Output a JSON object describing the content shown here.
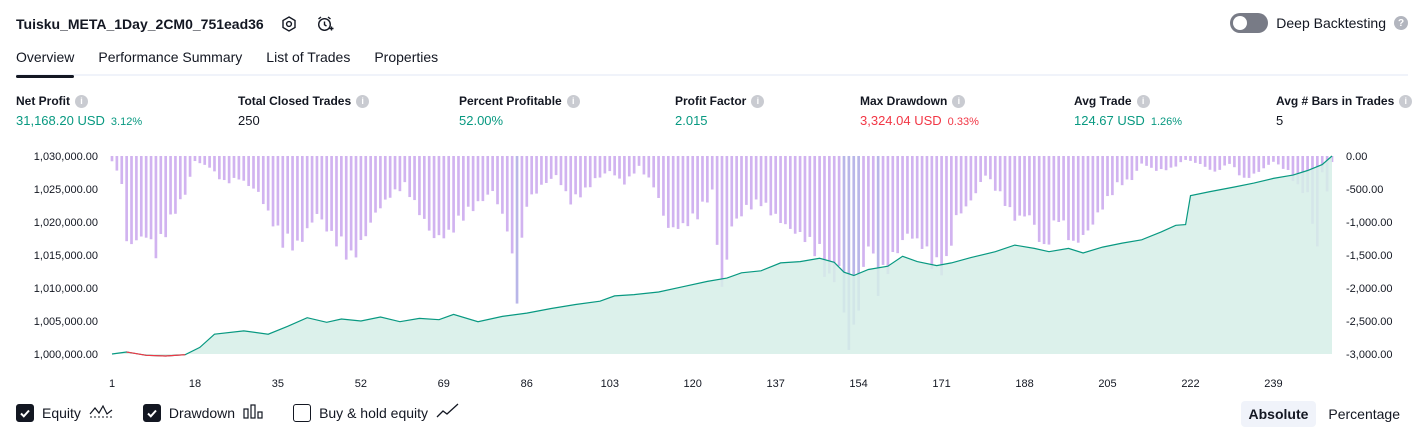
{
  "header": {
    "strategy_title": "Tuisku_META_1Day_2CM0_751ead36",
    "deep_backtesting_label": "Deep Backtesting",
    "deep_backtesting_enabled": false
  },
  "tabs": [
    {
      "label": "Overview",
      "active": true
    },
    {
      "label": "Performance Summary",
      "active": false
    },
    {
      "label": "List of Trades",
      "active": false
    },
    {
      "label": "Properties",
      "active": false
    }
  ],
  "metrics": [
    {
      "label": "Net Profit",
      "value": "31,168.20 USD",
      "pct": "3.12%",
      "color": "#089981"
    },
    {
      "label": "Total Closed Trades",
      "value": "250",
      "pct": "",
      "color": "#131722"
    },
    {
      "label": "Percent Profitable",
      "value": "52.00%",
      "pct": "",
      "color": "#089981"
    },
    {
      "label": "Profit Factor",
      "value": "2.015",
      "pct": "",
      "color": "#089981"
    },
    {
      "label": "Max Drawdown",
      "value": "3,324.04 USD",
      "pct": "0.33%",
      "color": "#f23645"
    },
    {
      "label": "Avg Trade",
      "value": "124.67 USD",
      "pct": "1.26%",
      "color": "#089981"
    },
    {
      "label": "Avg # Bars in Trades",
      "value": "5",
      "pct": "",
      "color": "#131722"
    }
  ],
  "chart_data": {
    "type": "area",
    "left_axis": {
      "ticks": [
        "1,030,000.00",
        "1,025,000.00",
        "1,020,000.00",
        "1,015,000.00",
        "1,010,000.00",
        "1,005,000.00",
        "1,000,000.00"
      ],
      "range": [
        1000000,
        1030000
      ]
    },
    "right_axis": {
      "ticks": [
        "0.00",
        "-500.00",
        "-1,000.00",
        "-1,500.00",
        "-2,000.00",
        "-2,500.00",
        "-3,000.00"
      ],
      "range": [
        -3000,
        0
      ]
    },
    "x_ticks": [
      "1",
      "18",
      "35",
      "52",
      "69",
      "86",
      "103",
      "120",
      "137",
      "154",
      "171",
      "188",
      "205",
      "222",
      "239"
    ],
    "x_range": [
      1,
      251
    ],
    "colors": {
      "equity": "#089981",
      "equity_fill": "#d6efe8",
      "equity_negative": "#f23645",
      "drawdown": "#d1b3f0",
      "drawdown_deep": "#b9b6e8"
    },
    "equity": [
      [
        1,
        1000000
      ],
      [
        4,
        1000300
      ],
      [
        8,
        999800
      ],
      [
        12,
        999700
      ],
      [
        16,
        999900
      ],
      [
        19,
        1001000
      ],
      [
        22,
        1003000
      ],
      [
        28,
        1003500
      ],
      [
        33,
        1003000
      ],
      [
        37,
        1004200
      ],
      [
        41,
        1005500
      ],
      [
        45,
        1004800
      ],
      [
        48,
        1005300
      ],
      [
        52,
        1005000
      ],
      [
        56,
        1005600
      ],
      [
        60,
        1004900
      ],
      [
        64,
        1005400
      ],
      [
        68,
        1005200
      ],
      [
        71,
        1006000
      ],
      [
        76,
        1004900
      ],
      [
        81,
        1005700
      ],
      [
        86,
        1006200
      ],
      [
        91,
        1006900
      ],
      [
        96,
        1007500
      ],
      [
        101,
        1008000
      ],
      [
        104,
        1008800
      ],
      [
        108,
        1009000
      ],
      [
        113,
        1009400
      ],
      [
        118,
        1010200
      ],
      [
        123,
        1011000
      ],
      [
        127,
        1011500
      ],
      [
        130,
        1012300
      ],
      [
        134,
        1012600
      ],
      [
        138,
        1013800
      ],
      [
        142,
        1014000
      ],
      [
        146,
        1014500
      ],
      [
        149,
        1013900
      ],
      [
        151,
        1012400
      ],
      [
        153,
        1011900
      ],
      [
        156,
        1012800
      ],
      [
        160,
        1013300
      ],
      [
        163,
        1014800
      ],
      [
        166,
        1014000
      ],
      [
        170,
        1013400
      ],
      [
        173,
        1013800
      ],
      [
        177,
        1014600
      ],
      [
        182,
        1015500
      ],
      [
        186,
        1016500
      ],
      [
        190,
        1016000
      ],
      [
        193,
        1015500
      ],
      [
        197,
        1016000
      ],
      [
        200,
        1015300
      ],
      [
        204,
        1016200
      ],
      [
        208,
        1016800
      ],
      [
        212,
        1017300
      ],
      [
        216,
        1018500
      ],
      [
        219,
        1019500
      ],
      [
        221,
        1019600
      ],
      [
        222,
        1024000
      ],
      [
        226,
        1024600
      ],
      [
        231,
        1025300
      ],
      [
        235,
        1025900
      ],
      [
        239,
        1026600
      ],
      [
        243,
        1027100
      ],
      [
        246,
        1027800
      ],
      [
        249,
        1028700
      ],
      [
        251,
        1030000
      ]
    ],
    "equity_negative_range": [
      4,
      18
    ],
    "drawdown_keyframes": [
      [
        1,
        -80
      ],
      [
        3,
        -430
      ],
      [
        4,
        -1420
      ],
      [
        6,
        -1350
      ],
      [
        8,
        -1270
      ],
      [
        10,
        -1560
      ],
      [
        12,
        -1230
      ],
      [
        14,
        -880
      ],
      [
        16,
        -600
      ],
      [
        18,
        -80
      ],
      [
        21,
        -180
      ],
      [
        24,
        -440
      ],
      [
        27,
        -360
      ],
      [
        31,
        -580
      ],
      [
        33,
        -920
      ],
      [
        36,
        -1390
      ],
      [
        39,
        -1460
      ],
      [
        43,
        -920
      ],
      [
        46,
        -1290
      ],
      [
        48,
        -1460
      ],
      [
        50,
        -1680
      ],
      [
        52,
        -1420
      ],
      [
        55,
        -910
      ],
      [
        58,
        -640
      ],
      [
        61,
        -480
      ],
      [
        64,
        -910
      ],
      [
        67,
        -1310
      ],
      [
        70,
        -1260
      ],
      [
        73,
        -980
      ],
      [
        76,
        -770
      ],
      [
        79,
        -560
      ],
      [
        82,
        -1160
      ],
      [
        84,
        -2240
      ],
      [
        86,
        -770
      ],
      [
        89,
        -480
      ],
      [
        92,
        -310
      ],
      [
        95,
        -740
      ],
      [
        98,
        -570
      ],
      [
        100,
        -380
      ],
      [
        103,
        -240
      ],
      [
        106,
        -440
      ],
      [
        109,
        -180
      ],
      [
        112,
        -480
      ],
      [
        115,
        -1160
      ],
      [
        118,
        -1130
      ],
      [
        121,
        -960
      ],
      [
        124,
        -580
      ],
      [
        126,
        -2160
      ],
      [
        128,
        -1120
      ],
      [
        131,
        -840
      ],
      [
        134,
        -760
      ],
      [
        137,
        -980
      ],
      [
        140,
        -1170
      ],
      [
        143,
        -1320
      ],
      [
        146,
        -1620
      ],
      [
        148,
        -2050
      ],
      [
        150,
        -1830
      ],
      [
        152,
        -3100
      ],
      [
        154,
        -2400
      ],
      [
        156,
        -1380
      ],
      [
        158,
        -2120
      ],
      [
        161,
        -1640
      ],
      [
        164,
        -1240
      ],
      [
        167,
        -1430
      ],
      [
        170,
        -1860
      ],
      [
        172,
        -1760
      ],
      [
        174,
        -990
      ],
      [
        177,
        -720
      ],
      [
        180,
        -300
      ],
      [
        183,
        -640
      ],
      [
        186,
        -1000
      ],
      [
        189,
        -940
      ],
      [
        192,
        -1520
      ],
      [
        195,
        -1000
      ],
      [
        198,
        -1430
      ],
      [
        201,
        -1200
      ],
      [
        204,
        -820
      ],
      [
        207,
        -480
      ],
      [
        210,
        -370
      ],
      [
        212,
        -120
      ],
      [
        215,
        -230
      ],
      [
        218,
        -210
      ],
      [
        221,
        -60
      ],
      [
        224,
        -130
      ],
      [
        227,
        -260
      ],
      [
        230,
        -120
      ],
      [
        233,
        -380
      ],
      [
        236,
        -250
      ],
      [
        239,
        -90
      ],
      [
        242,
        -250
      ],
      [
        244,
        -510
      ],
      [
        246,
        -620
      ],
      [
        248,
        -1480
      ],
      [
        249,
        -260
      ],
      [
        250,
        -560
      ],
      [
        251,
        -100
      ]
    ]
  },
  "legend": {
    "items": [
      {
        "label": "Equity",
        "checked": true,
        "icon": "equity-icon"
      },
      {
        "label": "Drawdown",
        "checked": true,
        "icon": "drawdown-icon"
      },
      {
        "label": "Buy & hold equity",
        "checked": false,
        "icon": "buy-hold-icon"
      }
    ],
    "absolute_label": "Absolute",
    "percentage_label": "Percentage",
    "selected": "Absolute"
  }
}
